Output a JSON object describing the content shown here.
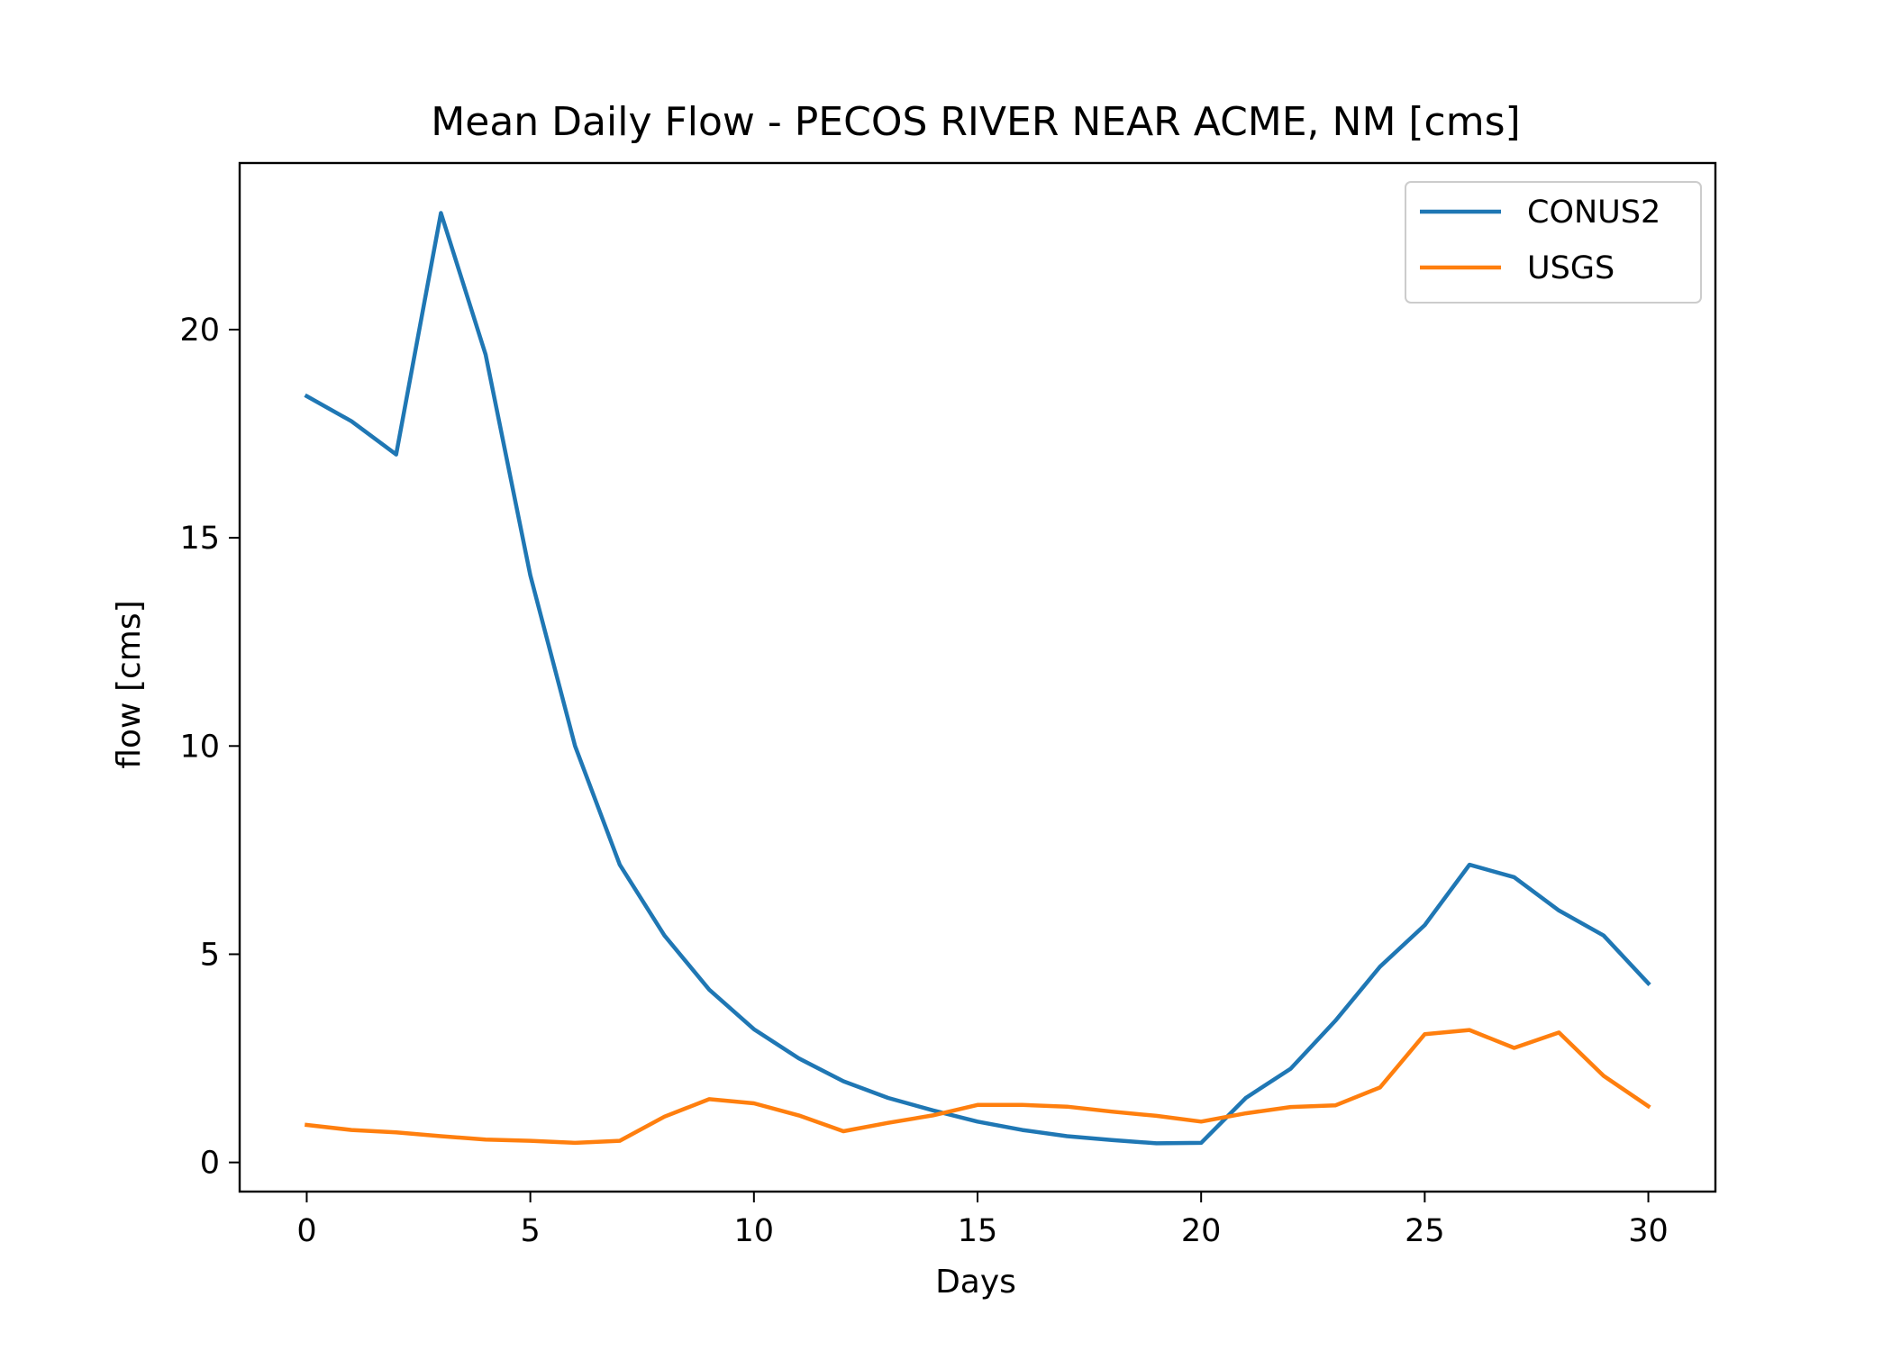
{
  "chart_data": {
    "type": "line",
    "title": "Mean Daily Flow - PECOS RIVER NEAR ACME, NM [cms]",
    "xlabel": "Days",
    "ylabel": "flow [cms]",
    "xlim": [
      -1.5,
      31.5
    ],
    "ylim": [
      -0.7,
      24.0
    ],
    "xticks": [
      0,
      5,
      10,
      15,
      20,
      25,
      30
    ],
    "yticks": [
      0,
      5,
      10,
      15,
      20
    ],
    "grid": false,
    "legend_position": "top-right",
    "x": [
      0,
      1,
      2,
      3,
      4,
      5,
      6,
      7,
      8,
      9,
      10,
      11,
      12,
      13,
      14,
      15,
      16,
      17,
      18,
      19,
      20,
      21,
      22,
      23,
      24,
      25,
      26,
      27,
      28,
      29,
      30
    ],
    "series": [
      {
        "name": "CONUS2",
        "color": "#1f77b4",
        "values": [
          18.4,
          17.8,
          17.0,
          22.8,
          19.4,
          14.1,
          10.0,
          7.15,
          5.45,
          4.15,
          3.2,
          2.5,
          1.95,
          1.55,
          1.25,
          0.98,
          0.78,
          0.63,
          0.54,
          0.46,
          0.47,
          1.55,
          2.25,
          3.4,
          4.7,
          5.7,
          7.15,
          6.85,
          6.05,
          5.45,
          4.3
        ]
      },
      {
        "name": "USGS",
        "color": "#ff7f0e",
        "values": [
          0.9,
          0.78,
          0.72,
          0.63,
          0.55,
          0.52,
          0.47,
          0.52,
          1.1,
          1.52,
          1.42,
          1.13,
          0.75,
          0.95,
          1.13,
          1.38,
          1.38,
          1.34,
          1.22,
          1.12,
          0.98,
          1.18,
          1.33,
          1.37,
          1.8,
          3.08,
          3.18,
          2.75,
          3.12,
          2.08,
          1.35
        ]
      }
    ]
  }
}
